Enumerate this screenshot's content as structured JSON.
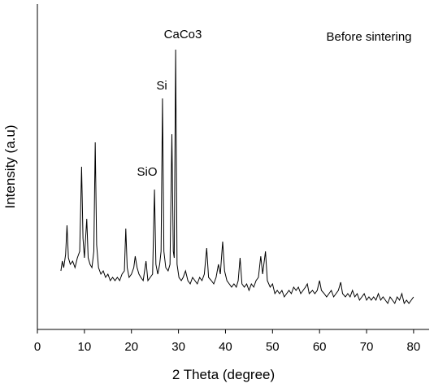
{
  "chart_data": {
    "type": "line",
    "xlabel": "2 Theta (degree)",
    "ylabel": "Intensity (a.u)",
    "label": "Before sintering",
    "annotations": [
      "CaCo3",
      "Si",
      "SiO"
    ],
    "xlim": [
      0,
      83.3
    ],
    "xticks": [
      0,
      10,
      20,
      30,
      40,
      50,
      60,
      70,
      80
    ],
    "ylim": [
      0,
      100
    ],
    "series": [
      {
        "color": "#000000",
        "x": [
          5.0,
          5.3,
          5.6,
          6.0,
          6.3,
          6.6,
          7.0,
          7.5,
          8.0,
          8.5,
          9.0,
          9.4,
          9.7,
          10.0,
          10.5,
          10.8,
          11.2,
          11.6,
          12.0,
          12.3,
          12.6,
          13.0,
          13.5,
          14.0,
          14.5,
          15.0,
          15.5,
          16.0,
          16.5,
          17.0,
          17.5,
          18.0,
          18.5,
          18.8,
          19.1,
          19.5,
          20.0,
          20.5,
          20.8,
          21.2,
          21.6,
          22.0,
          22.5,
          23.1,
          23.5,
          24.0,
          24.5,
          24.9,
          25.2,
          25.6,
          26.0,
          26.3,
          26.6,
          26.9,
          27.3,
          27.8,
          28.2,
          28.6,
          28.9,
          29.1,
          29.4,
          29.7,
          30.1,
          30.6,
          31.0,
          31.5,
          32.0,
          32.5,
          33.0,
          33.5,
          34.0,
          34.5,
          35.0,
          35.5,
          36.0,
          36.4,
          37.0,
          37.5,
          38.0,
          38.5,
          38.9,
          39.4,
          39.8,
          40.3,
          40.8,
          41.3,
          41.8,
          42.3,
          42.7,
          43.1,
          43.5,
          44.0,
          44.5,
          45.0,
          45.5,
          46.0,
          46.5,
          47.0,
          47.5,
          47.9,
          48.5,
          48.9,
          49.5,
          50.0,
          50.5,
          51.0,
          51.5,
          52.0,
          52.5,
          53.0,
          53.5,
          54.0,
          54.5,
          55.0,
          55.5,
          56.0,
          56.5,
          57.0,
          57.4,
          57.8,
          58.5,
          59.0,
          59.5,
          60.0,
          60.4,
          61.0,
          61.5,
          62.0,
          62.5,
          63.0,
          63.5,
          64.0,
          64.5,
          64.9,
          65.5,
          66.0,
          66.5,
          67.0,
          67.5,
          68.0,
          68.5,
          69.0,
          69.5,
          70.0,
          70.5,
          71.0,
          71.5,
          72.0,
          72.5,
          73.0,
          73.5,
          74.0,
          74.5,
          75.0,
          75.5,
          76.0,
          76.5,
          77.0,
          77.5,
          78.0,
          78.5,
          79.0,
          79.5,
          80.0
        ],
        "values": [
          18,
          21,
          19,
          23,
          32,
          22,
          20,
          21,
          19,
          22,
          24,
          50,
          28,
          22,
          34,
          22,
          20,
          19,
          24,
          57.5,
          26,
          19,
          17,
          18,
          16,
          17,
          15,
          16,
          15,
          16,
          15,
          17,
          18,
          31,
          19,
          16,
          17,
          19,
          22.5,
          19,
          17,
          16,
          15,
          21,
          15,
          16,
          17,
          43,
          20,
          17,
          20,
          24,
          71,
          24,
          19,
          18,
          20,
          60,
          24,
          22,
          86,
          20,
          16,
          15,
          16,
          18,
          15,
          14,
          16,
          15,
          14,
          16,
          15,
          17,
          25,
          16,
          15,
          14,
          16,
          20,
          17,
          27,
          18,
          15,
          14,
          13,
          14,
          13,
          15,
          22,
          14,
          13,
          14,
          12,
          14,
          13,
          15,
          16,
          22.5,
          17,
          24,
          15,
          13,
          14,
          11,
          12,
          11,
          12,
          10,
          11,
          12,
          11,
          13,
          12,
          13,
          11,
          12,
          13,
          14,
          11,
          12,
          11,
          12,
          15,
          12,
          11,
          10,
          11,
          12,
          10,
          11,
          12,
          14.5,
          11,
          10,
          11,
          10,
          12,
          10,
          11,
          9,
          10,
          11,
          9,
          10,
          9,
          10,
          9,
          11,
          9,
          10,
          9,
          8,
          10,
          9,
          8,
          10,
          9,
          11,
          8,
          9,
          8,
          9,
          10
        ]
      }
    ]
  }
}
